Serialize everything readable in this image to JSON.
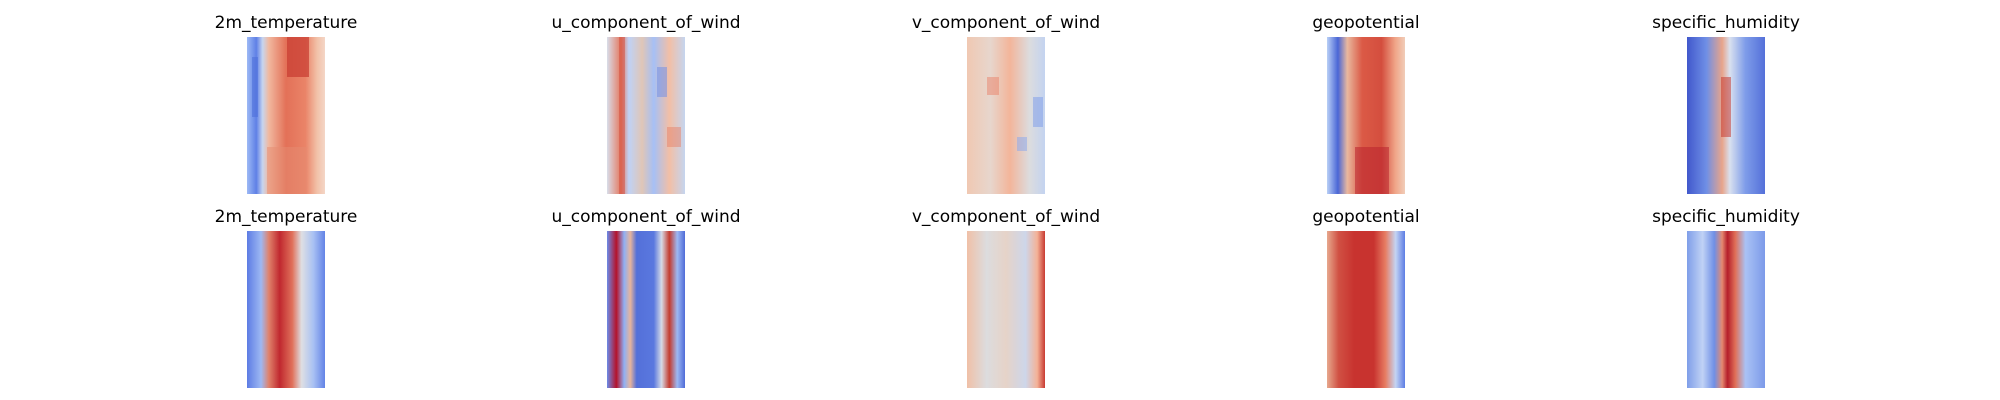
{
  "colormap": "coolwarm",
  "colors": {
    "cool": "#3b4cc0",
    "neutral": "#dddddd",
    "warm": "#b40426",
    "background": "#ffffff"
  },
  "rows": [
    {
      "panels": [
        {
          "title": "2m_temperature"
        },
        {
          "title": "u_component_of_wind"
        },
        {
          "title": "v_component_of_wind"
        },
        {
          "title": "geopotential"
        },
        {
          "title": "specific_humidity"
        }
      ]
    },
    {
      "panels": [
        {
          "title": "2m_temperature"
        },
        {
          "title": "u_component_of_wind"
        },
        {
          "title": "v_component_of_wind"
        },
        {
          "title": "geopotential"
        },
        {
          "title": "specific_humidity"
        }
      ]
    }
  ]
}
